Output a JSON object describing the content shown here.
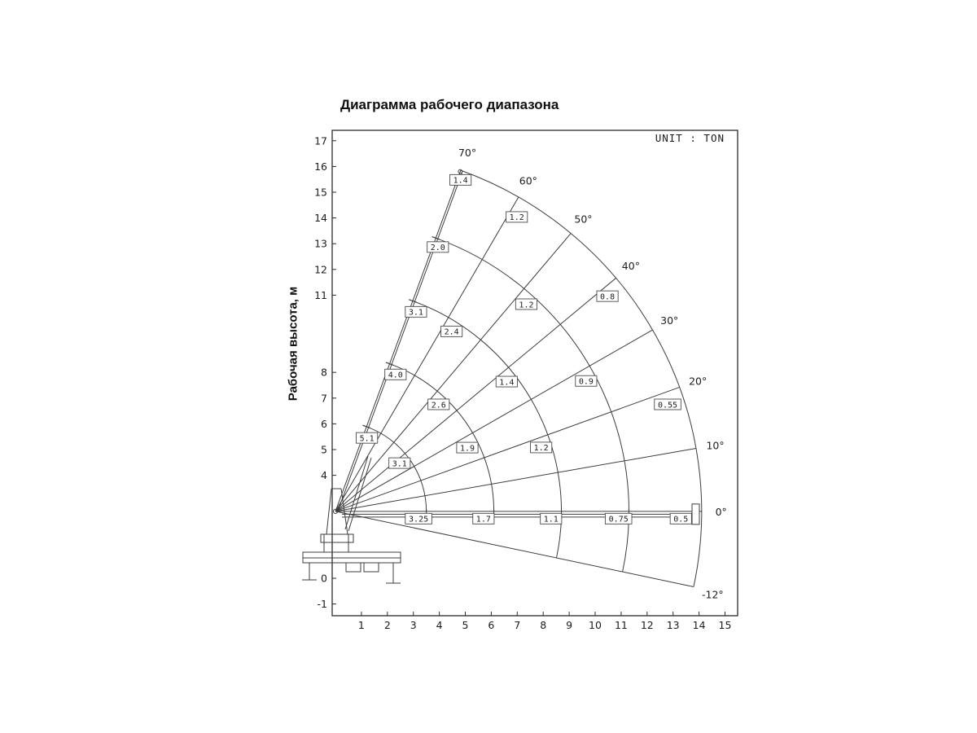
{
  "chart_data": {
    "type": "polar-fan-load-chart",
    "title": "Диаграмма рабочего диапазона",
    "unit_label": "UNIT : TON",
    "unit": "TON",
    "ylabel": "Рабочая высота, м",
    "x_ticks": [
      1,
      2,
      3,
      4,
      5,
      6,
      7,
      8,
      9,
      10,
      11,
      12,
      13,
      14,
      15
    ],
    "y_ticks": [
      -1,
      0,
      4,
      5,
      6,
      7,
      8,
      11,
      12,
      13,
      14,
      15,
      16,
      17
    ],
    "x_axis_range": [
      0,
      15
    ],
    "y_axis_range": [
      -1,
      17
    ],
    "origin": {
      "x_m": 0,
      "y_m": 2.6
    },
    "boom_angles_deg": [
      70,
      60,
      50,
      40,
      30,
      20,
      10,
      0,
      -12
    ],
    "angle_labels": [
      "70°",
      "60°",
      "50°",
      "40°",
      "30°",
      "20°",
      "10°",
      "0°",
      "-12°"
    ],
    "arc_radii_m": [
      3.5,
      6.1,
      8.7,
      11.3,
      14.1
    ],
    "arc_min_angle_deg": [
      0,
      0,
      -12,
      -12,
      -12
    ],
    "load_labels": [
      {
        "value": "1.4",
        "r_m": 13.75,
        "angle_deg": 69.5,
        "dy": 0
      },
      {
        "value": "2.0",
        "r_m": 11.0,
        "angle_deg": 69.0,
        "dy": 0
      },
      {
        "value": "3.1",
        "r_m": 8.35,
        "angle_deg": 68.2,
        "dy": 0
      },
      {
        "value": "4.0",
        "r_m": 5.8,
        "angle_deg": 66.5,
        "dy": 0
      },
      {
        "value": "5.1",
        "r_m": 3.1,
        "angle_deg": 67.0,
        "dy": 0
      },
      {
        "value": "1.2",
        "r_m": 13.4,
        "angle_deg": 58.6,
        "dy": 0
      },
      {
        "value": "2.4",
        "r_m": 8.3,
        "angle_deg": 57.4,
        "dy": 0
      },
      {
        "value": "1.2",
        "r_m": 10.9,
        "angle_deg": 47.6,
        "dy": 0
      },
      {
        "value": "2.6",
        "r_m": 5.75,
        "angle_deg": 46.3,
        "dy": 0
      },
      {
        "value": "0.8",
        "r_m": 13.4,
        "angle_deg": 38.6,
        "dy": 0
      },
      {
        "value": "1.4",
        "r_m": 8.3,
        "angle_deg": 37.4,
        "dy": 0
      },
      {
        "value": "3.1",
        "r_m": 3.1,
        "angle_deg": 37.2,
        "dy": 0
      },
      {
        "value": "0.9",
        "r_m": 10.9,
        "angle_deg": 27.7,
        "dy": 0
      },
      {
        "value": "1.9",
        "r_m": 5.65,
        "angle_deg": 26.0,
        "dy": 0
      },
      {
        "value": "0.55",
        "r_m": 13.45,
        "angle_deg": 18.0,
        "dy": 0
      },
      {
        "value": "1.2",
        "r_m": 8.3,
        "angle_deg": 17.4,
        "dy": 0
      },
      {
        "value": "3.25",
        "r_m": 3.2,
        "angle_deg": 0,
        "dy": 9
      },
      {
        "value": "1.7",
        "r_m": 5.7,
        "angle_deg": 0,
        "dy": 9
      },
      {
        "value": "1.1",
        "r_m": 8.3,
        "angle_deg": 0,
        "dy": 9
      },
      {
        "value": "0.75",
        "r_m": 10.9,
        "angle_deg": 0,
        "dy": 9
      },
      {
        "value": "0.5",
        "r_m": 13.3,
        "angle_deg": 0,
        "dy": 9
      }
    ]
  }
}
